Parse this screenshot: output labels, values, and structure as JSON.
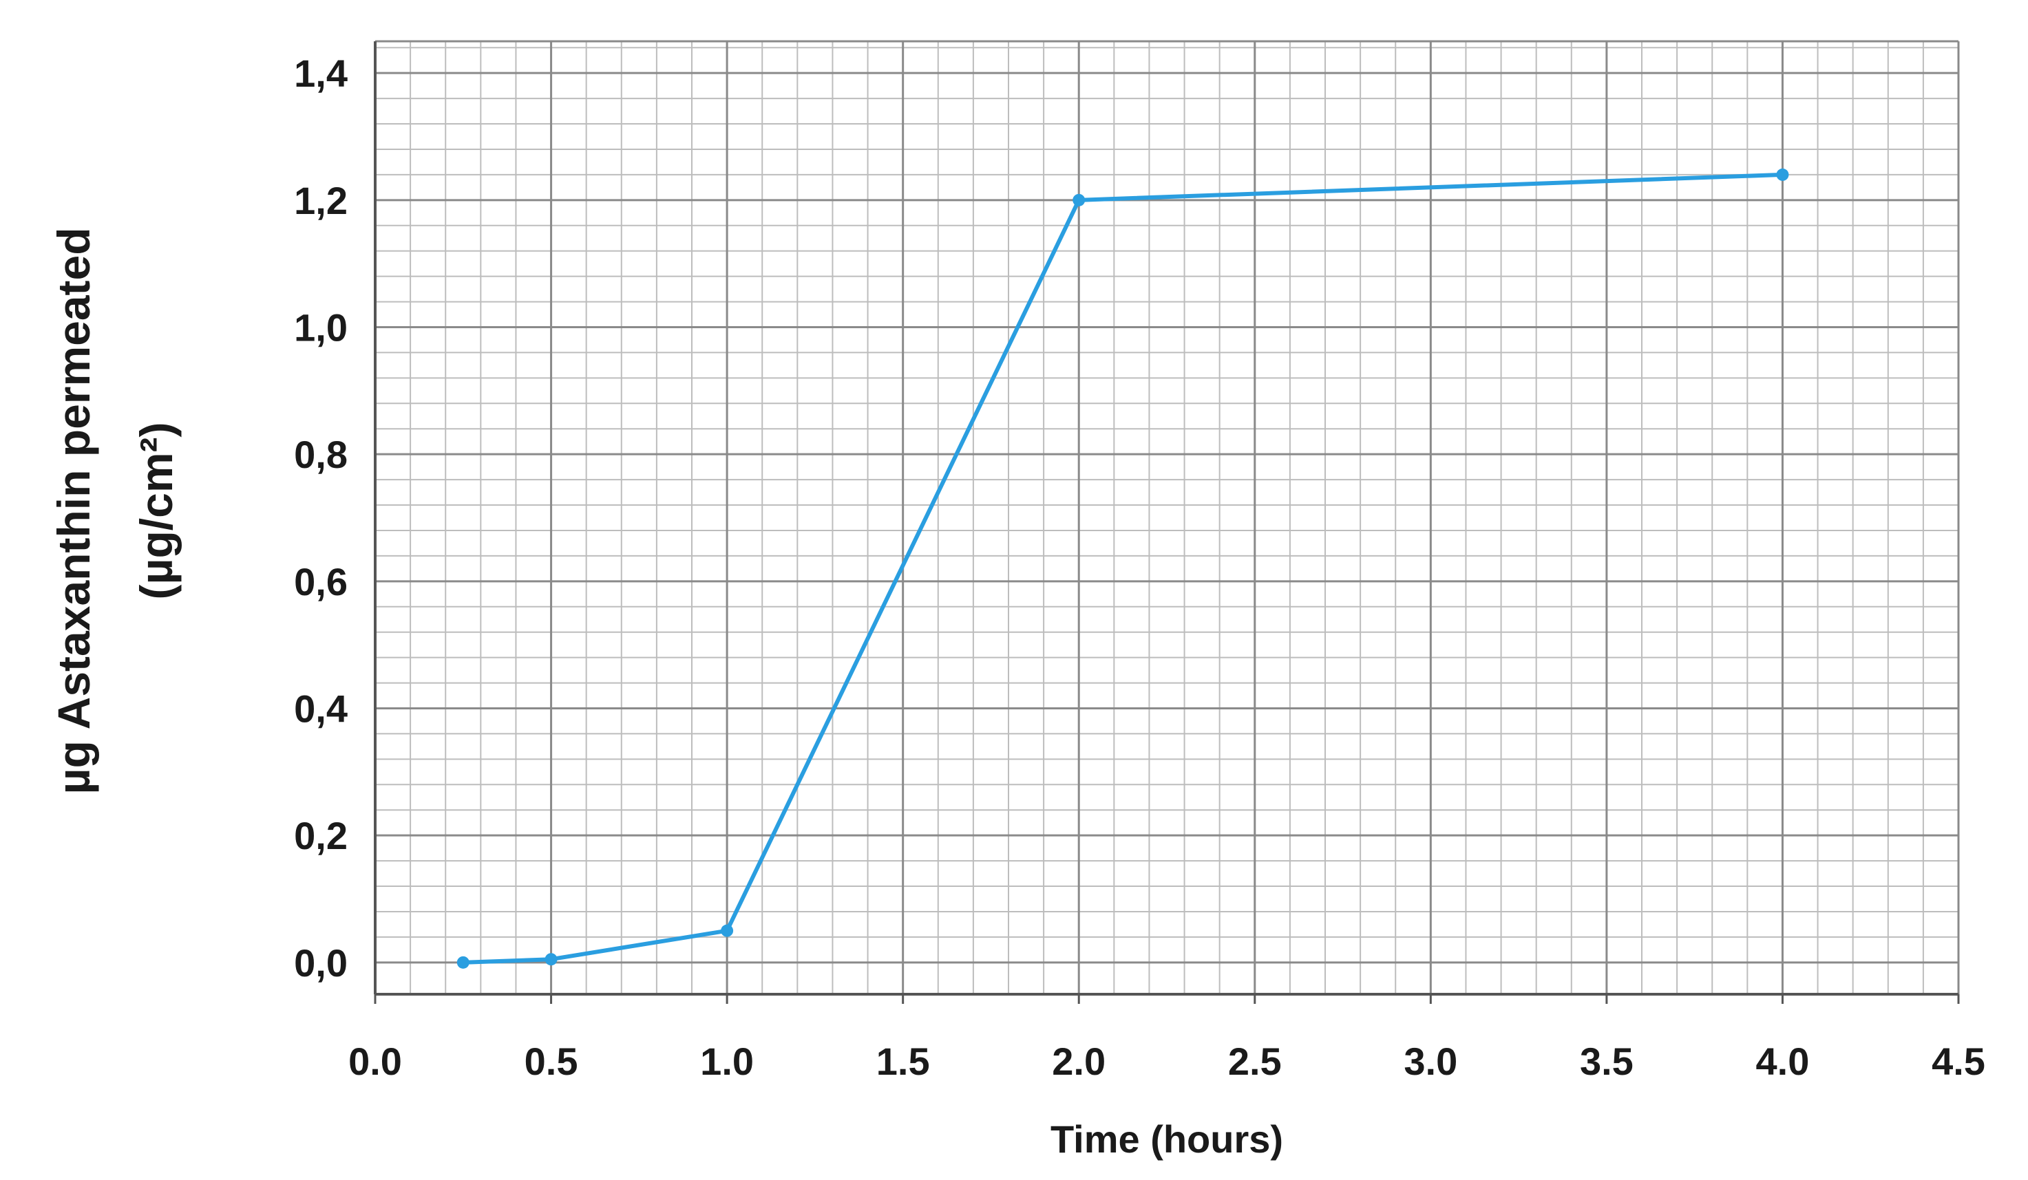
{
  "chart_data": {
    "type": "line",
    "title": "",
    "xlabel": "Time (hours)",
    "ylabel_lines": [
      "µg Astaxanthin  permeated",
      "(µg/cm²)"
    ],
    "x_tick_labels": [
      "0.0",
      "0.5",
      "1.0",
      "1.5",
      "2.0",
      "2.5",
      "3.0",
      "3.5",
      "4.0",
      "4.5"
    ],
    "x_ticks": [
      0,
      0.5,
      1,
      1.5,
      2,
      2.5,
      3,
      3.5,
      4,
      4.5
    ],
    "y_tick_labels": [
      "0,0",
      "0,2",
      "0,4",
      "0,6",
      "0,8",
      "1,0",
      "1,2",
      "1,4"
    ],
    "y_ticks": [
      0,
      0.2,
      0.4,
      0.6,
      0.8,
      1.0,
      1.2,
      1.4
    ],
    "xlim": [
      0,
      4.5
    ],
    "ylim": [
      -0.05,
      1.45
    ],
    "grid": true,
    "minor_grid": true,
    "legend": "none",
    "series": [
      {
        "x": [
          0.25,
          0.5,
          1.0,
          2.0,
          4.0
        ],
        "values": [
          0.0,
          0.005,
          0.05,
          1.2,
          1.24
        ],
        "color": "#2a9ee0"
      }
    ]
  }
}
